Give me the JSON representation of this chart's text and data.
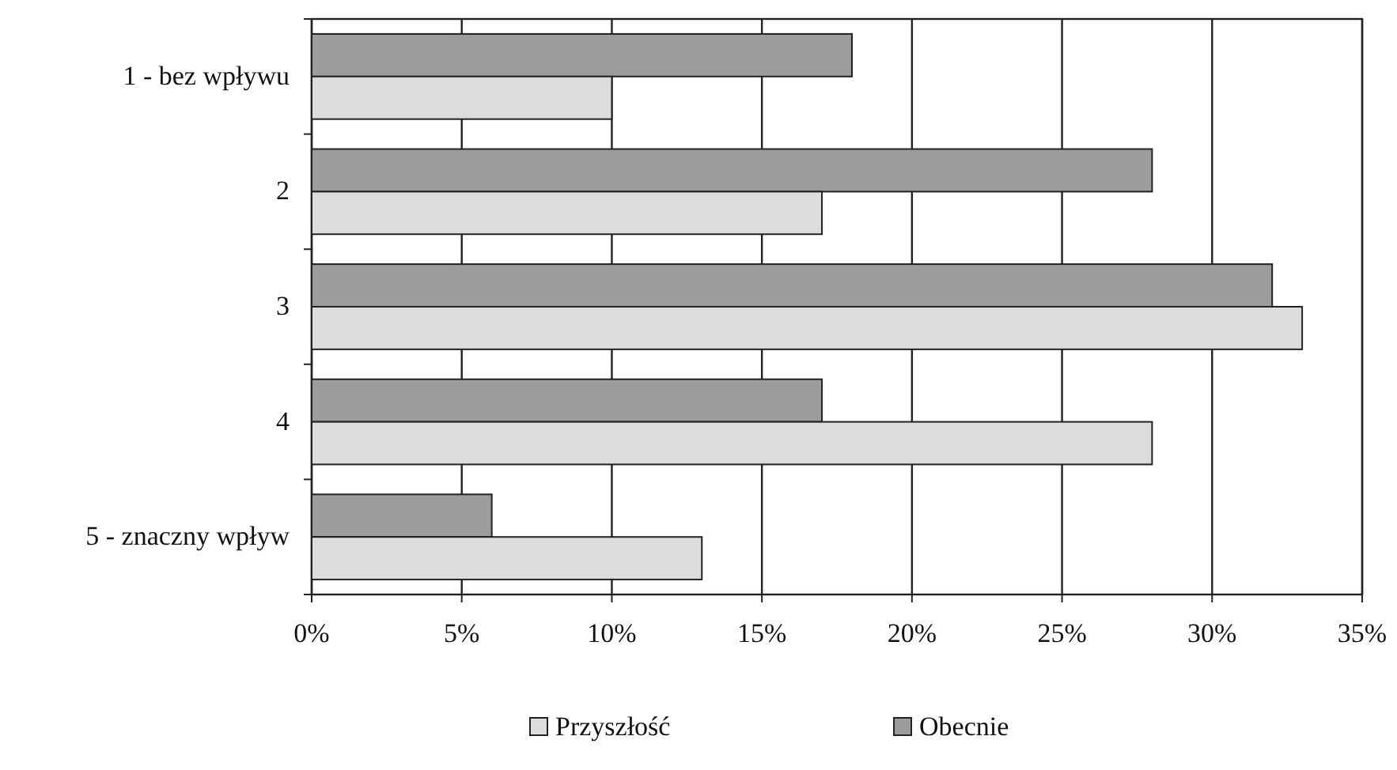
{
  "chart_data": {
    "type": "bar",
    "orientation": "horizontal",
    "categories": [
      "1 - bez wpływu",
      "2",
      "3",
      "4",
      "5 - znaczny wpływ"
    ],
    "series": [
      {
        "name": "Obecnie",
        "color": "#9c9c9c",
        "values": [
          18,
          28,
          32,
          17,
          6
        ]
      },
      {
        "name": "Przyszłość",
        "color": "#dcdcdc",
        "values": [
          10,
          17,
          33,
          28,
          13
        ]
      }
    ],
    "xlim": [
      0,
      35
    ],
    "xticks": [
      {
        "value": 0,
        "label": "0%"
      },
      {
        "value": 5,
        "label": "5%"
      },
      {
        "value": 10,
        "label": "10%"
      },
      {
        "value": 15,
        "label": "15%"
      },
      {
        "value": 20,
        "label": "20%"
      },
      {
        "value": 25,
        "label": "25%"
      },
      {
        "value": 30,
        "label": "30%"
      },
      {
        "value": 35,
        "label": "35%"
      }
    ],
    "grid": "x",
    "legend": "bottom"
  }
}
